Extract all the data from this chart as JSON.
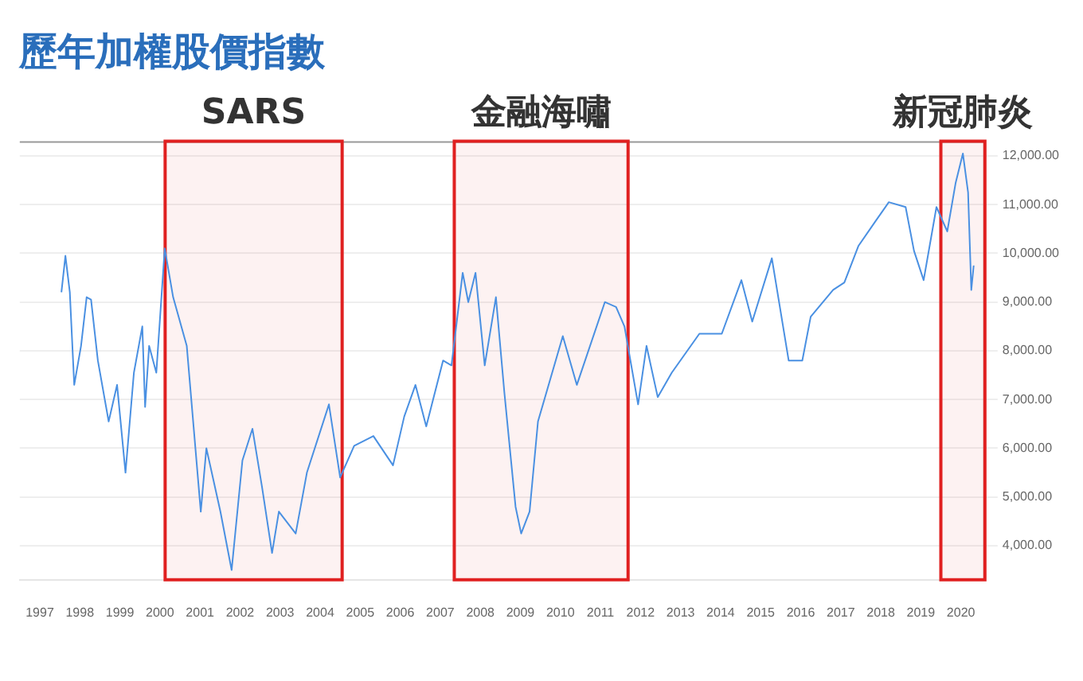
{
  "chart_data": {
    "type": "line",
    "title": "歷年加權股價指數",
    "x": [
      1997.54,
      1997.64,
      1997.75,
      1997.86,
      1998.03,
      1998.17,
      1998.28,
      1998.45,
      1998.72,
      1998.93,
      1999.14,
      1999.35,
      1999.56,
      1999.63,
      1999.73,
      1999.91,
      2000.12,
      2000.33,
      2000.67,
      2001.02,
      2001.16,
      2001.51,
      2001.79,
      2002.06,
      2002.31,
      2002.55,
      2002.8,
      2002.97,
      2003.39,
      2003.67,
      2004.22,
      2004.5,
      2004.85,
      2005.33,
      2005.82,
      2006.1,
      2006.38,
      2006.65,
      2007.07,
      2007.28,
      2007.56,
      2007.7,
      2007.88,
      2008.11,
      2008.39,
      2008.6,
      2008.88,
      2009.02,
      2009.23,
      2009.44,
      2010.06,
      2010.41,
      2011.11,
      2011.39,
      2011.6,
      2011.94,
      2012.15,
      2012.43,
      2012.78,
      2013.47,
      2014.03,
      2014.52,
      2014.79,
      2015.28,
      2015.7,
      2016.04,
      2016.25,
      2016.81,
      2017.09,
      2017.44,
      2017.86,
      2018.2,
      2018.62,
      2018.83,
      2019.07,
      2019.39,
      2019.66,
      2019.87,
      2020.05,
      2020.18,
      2020.26,
      2020.32
    ],
    "series": [
      {
        "color": "#4a90e2",
        "values": [
          9200,
          9950,
          9200,
          7300,
          8100,
          9100,
          9050,
          7800,
          6550,
          7300,
          5500,
          7550,
          8500,
          6850,
          8100,
          7550,
          10100,
          9100,
          8100,
          4700,
          6000,
          4700,
          3500,
          5750,
          6400,
          5200,
          3850,
          4700,
          4250,
          5500,
          6900,
          5400,
          6050,
          6250,
          5650,
          6650,
          7300,
          6450,
          7800,
          7700,
          9600,
          9000,
          9600,
          7700,
          9100,
          7150,
          4800,
          4250,
          4700,
          6550,
          8300,
          7300,
          9000,
          8900,
          8500,
          6900,
          8100,
          7050,
          7550,
          8350,
          8350,
          9450,
          8600,
          9900,
          7800,
          7800,
          8700,
          9250,
          9400,
          10150,
          10650,
          11050,
          10950,
          10050,
          9450,
          10950,
          10450,
          11450,
          12050,
          11250,
          9250,
          9750
        ]
      }
    ],
    "xlim": [
      1996.5,
      2020.6
    ],
    "xticks": [
      1997,
      1998,
      1999,
      2000,
      2001,
      2002,
      2003,
      2004,
      2005,
      2006,
      2007,
      2008,
      2009,
      2010,
      2011,
      2012,
      2013,
      2014,
      2015,
      2016,
      2017,
      2018,
      2019,
      2020
    ],
    "ylim": [
      3300,
      12300
    ],
    "yticks": [
      {
        "value": 4000,
        "label": "4,000.00"
      },
      {
        "value": 5000,
        "label": "5,000.00"
      },
      {
        "value": 6000,
        "label": "6,000.00"
      },
      {
        "value": 7000,
        "label": "7,000.00"
      },
      {
        "value": 8000,
        "label": "8,000.00"
      },
      {
        "value": 9000,
        "label": "9,000.00"
      },
      {
        "value": 10000,
        "label": "10,000.00"
      },
      {
        "value": 11000,
        "label": "11,000.00"
      },
      {
        "value": 12000,
        "label": "12,000.00"
      }
    ],
    "bands": [
      {
        "axis": "x",
        "from": 2000.13,
        "to": 2004.55,
        "label": "SARS",
        "color": "#e02020"
      },
      {
        "axis": "x",
        "from": 2007.35,
        "to": 2011.69,
        "label": "金融海嘯",
        "color": "#e02020"
      },
      {
        "axis": "x",
        "from": 2019.5,
        "to": 2020.6,
        "label": "新冠肺炎",
        "color": "#e02020"
      }
    ],
    "grid": "y",
    "marker": "none",
    "line_style": "solid",
    "legend": false
  }
}
